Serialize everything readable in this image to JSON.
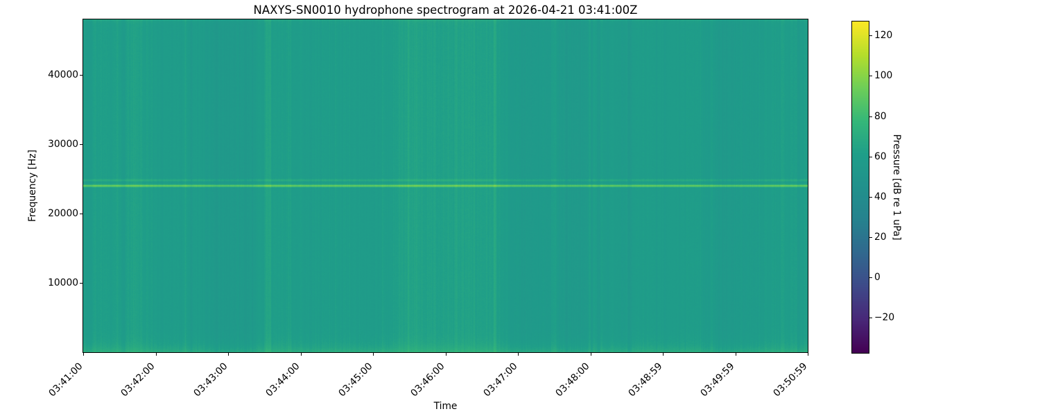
{
  "figure": {
    "title": "NAXYS-SN0010 hydrophone spectrogram at 2026-04-21 03:41:00Z",
    "xlabel": "Time",
    "ylabel": "Frequency [Hz]",
    "colorbar_label": "Pressure [dB re 1 uPa]"
  },
  "chart_data": {
    "type": "heatmap",
    "subtype": "spectrogram",
    "title": "NAXYS-SN0010 hydrophone spectrogram at 2026-04-21 03:41:00Z",
    "xlabel": "Time",
    "ylabel": "Frequency [Hz]",
    "x_tick_labels": [
      "03:41:00",
      "03:42:00",
      "03:43:00",
      "03:44:00",
      "03:45:00",
      "03:46:00",
      "03:47:00",
      "03:48:00",
      "03:48:59",
      "03:49:59",
      "03:50:59"
    ],
    "x_tick_rotation_deg": 45,
    "time_start": "03:41:00",
    "time_end": "03:50:59",
    "y_ticks_hz": [
      40000,
      30000,
      20000,
      10000
    ],
    "y_tick_labels": [
      "40000",
      "30000",
      "20000",
      "10000"
    ],
    "freq_range_hz": [
      0,
      48000
    ],
    "grid": false,
    "colormap": "viridis",
    "colormap_stops": [
      "#440154",
      "#482878",
      "#3e4a89",
      "#31688e",
      "#26828e",
      "#21918c",
      "#1f9e89",
      "#35b779",
      "#6ece58",
      "#b5de2b",
      "#fde725"
    ],
    "color_scale": {
      "label": "Pressure [dB re 1 uPa]",
      "vmin": -37.5,
      "vmax": 127.0,
      "ticks": [
        120,
        100,
        80,
        60,
        40,
        20,
        0,
        -20
      ],
      "tick_labels": [
        "120",
        "100",
        "80",
        "60",
        "40",
        "20",
        "0",
        "−20"
      ]
    },
    "content": {
      "background_level_db": 60,
      "column_variation_db": 5,
      "pixel_noise_db": 2.6,
      "tonal_lines": [
        {
          "freq_hz": 24000,
          "peak_level_db": 95,
          "sigma_hz": 115
        },
        {
          "freq_hz": 24800,
          "peak_level_db": 70,
          "sigma_hz": 110
        }
      ],
      "low_freq_band": {
        "cutoff_hz": 950,
        "boost_db": 12
      },
      "top_edge_band": {
        "cutoff_hz": 260,
        "boost_db": 6
      }
    }
  }
}
